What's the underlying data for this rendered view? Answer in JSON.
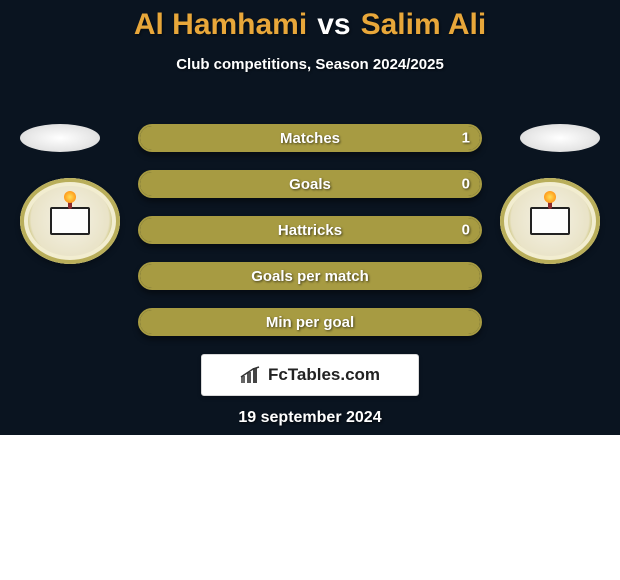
{
  "header": {
    "player1": "Al Hamhami",
    "vs": "vs",
    "player2": "Salim Ali",
    "subtitle": "Club competitions, Season 2024/2025",
    "p1_color": "#e8a73a",
    "vs_color": "#ffffff",
    "p2_color": "#e8a73a",
    "title_fontsize": 30,
    "subtitle_fontsize": 15
  },
  "palette": {
    "bg_dark": "#0a1420",
    "bg_light": "#ffffff",
    "player1_accent": "#a79b42",
    "player2_accent": "#a79b42",
    "text_white": "#ffffff"
  },
  "stats": {
    "bar_border_color": "#a79b42",
    "bar_bg_color": "#0a1420",
    "bar_fill_color": "#a79b42",
    "items": [
      {
        "label": "Matches",
        "p1": "1",
        "p2": "1",
        "fill_pct": 100
      },
      {
        "label": "Goals",
        "p1": "0",
        "p2": "0",
        "fill_pct": 100
      },
      {
        "label": "Hattricks",
        "p1": "0",
        "p2": "0",
        "fill_pct": 100
      },
      {
        "label": "Goals per match",
        "p1": "",
        "p2": "",
        "fill_pct": 100
      },
      {
        "label": "Min per goal",
        "p1": "",
        "p2": "",
        "fill_pct": 100
      }
    ]
  },
  "brand": {
    "text": "FcTables.com",
    "icon": "bar-chart-icon",
    "bg_color": "#ffffff",
    "text_color": "#222222"
  },
  "date": {
    "text": "19 september 2024"
  }
}
